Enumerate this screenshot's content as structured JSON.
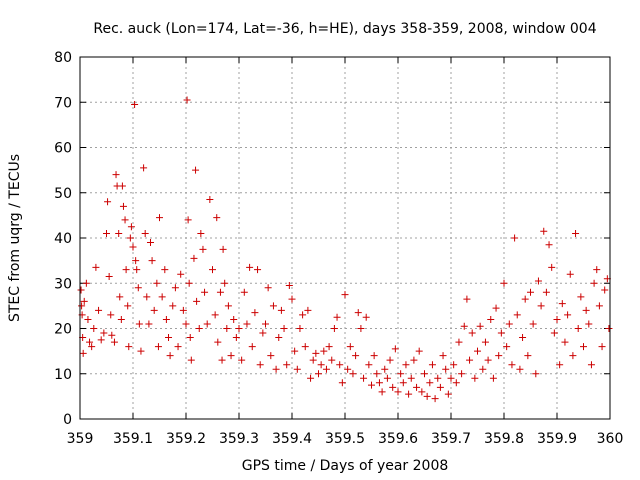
{
  "chart_data": {
    "type": "scatter",
    "title": "Rec. auck (Lon=174, Lat=-36, h=HE), days 358-359, 2008, window 004",
    "xlabel": "GPS time / Days of year 2008",
    "ylabel": "STEC from uqrg / TECUs",
    "xlim": [
      359,
      360
    ],
    "ylim": [
      0,
      80
    ],
    "x_ticks": [
      "359",
      "359.1",
      "359.2",
      "359.3",
      "359.4",
      "359.5",
      "359.6",
      "359.7",
      "359.8",
      "359.9",
      "360"
    ],
    "y_ticks": [
      "0",
      "10",
      "20",
      "30",
      "40",
      "50",
      "60",
      "70",
      "80"
    ],
    "grid": true,
    "marker": "+",
    "color": "#cc0000",
    "series": [
      {
        "points": [
          [
            359.002,
            28.5
          ],
          [
            359.003,
            25
          ],
          [
            359.004,
            23
          ],
          [
            359.005,
            18
          ],
          [
            359.006,
            14.5
          ],
          [
            359.008,
            26
          ],
          [
            359.012,
            30
          ],
          [
            359.015,
            22
          ],
          [
            359.018,
            17
          ],
          [
            359.022,
            16
          ],
          [
            359.026,
            20
          ],
          [
            359.03,
            33.5
          ],
          [
            359.035,
            24
          ],
          [
            359.04,
            17.5
          ],
          [
            359.045,
            19
          ],
          [
            359.05,
            41
          ],
          [
            359.052,
            48
          ],
          [
            359.055,
            31.5
          ],
          [
            359.058,
            23
          ],
          [
            359.06,
            18.5
          ],
          [
            359.065,
            17
          ],
          [
            359.068,
            54
          ],
          [
            359.07,
            51.5
          ],
          [
            359.073,
            41
          ],
          [
            359.075,
            27
          ],
          [
            359.078,
            22
          ],
          [
            359.08,
            51.5
          ],
          [
            359.082,
            47
          ],
          [
            359.085,
            44
          ],
          [
            359.087,
            33
          ],
          [
            359.09,
            25
          ],
          [
            359.092,
            16
          ],
          [
            359.095,
            40
          ],
          [
            359.097,
            42.5
          ],
          [
            359.1,
            38
          ],
          [
            359.103,
            69.5
          ],
          [
            359.105,
            35
          ],
          [
            359.107,
            33
          ],
          [
            359.11,
            29
          ],
          [
            359.112,
            21
          ],
          [
            359.115,
            15
          ],
          [
            359.12,
            55.5
          ],
          [
            359.123,
            41
          ],
          [
            359.126,
            27
          ],
          [
            359.13,
            21
          ],
          [
            359.133,
            39
          ],
          [
            359.136,
            35
          ],
          [
            359.14,
            24
          ],
          [
            359.145,
            30
          ],
          [
            359.148,
            16
          ],
          [
            359.15,
            44.5
          ],
          [
            359.155,
            27
          ],
          [
            359.16,
            33
          ],
          [
            359.163,
            22
          ],
          [
            359.167,
            18
          ],
          [
            359.17,
            14
          ],
          [
            359.175,
            25
          ],
          [
            359.18,
            29
          ],
          [
            359.185,
            16
          ],
          [
            359.19,
            32
          ],
          [
            359.195,
            24
          ],
          [
            359.2,
            21
          ],
          [
            359.202,
            70.5
          ],
          [
            359.204,
            44
          ],
          [
            359.206,
            30
          ],
          [
            359.208,
            18
          ],
          [
            359.21,
            13
          ],
          [
            359.215,
            35.5
          ],
          [
            359.218,
            55
          ],
          [
            359.22,
            26
          ],
          [
            359.225,
            20
          ],
          [
            359.228,
            41
          ],
          [
            359.232,
            37.5
          ],
          [
            359.235,
            28
          ],
          [
            359.24,
            21
          ],
          [
            359.245,
            48.5
          ],
          [
            359.25,
            33
          ],
          [
            359.255,
            23
          ],
          [
            359.258,
            44.5
          ],
          [
            359.26,
            17
          ],
          [
            359.265,
            28
          ],
          [
            359.268,
            13
          ],
          [
            359.27,
            37.5
          ],
          [
            359.273,
            30
          ],
          [
            359.277,
            20
          ],
          [
            359.28,
            25
          ],
          [
            359.285,
            14
          ],
          [
            359.29,
            22
          ],
          [
            359.295,
            18
          ],
          [
            359.3,
            20
          ],
          [
            359.305,
            13
          ],
          [
            359.31,
            28
          ],
          [
            359.315,
            21
          ],
          [
            359.32,
            33.5
          ],
          [
            359.325,
            16
          ],
          [
            359.33,
            23.5
          ],
          [
            359.335,
            33
          ],
          [
            359.34,
            12
          ],
          [
            359.345,
            19
          ],
          [
            359.35,
            21
          ],
          [
            359.355,
            29
          ],
          [
            359.36,
            14
          ],
          [
            359.365,
            25
          ],
          [
            359.37,
            11
          ],
          [
            359.375,
            18
          ],
          [
            359.38,
            24
          ],
          [
            359.385,
            20
          ],
          [
            359.39,
            12
          ],
          [
            359.395,
            29.5
          ],
          [
            359.4,
            26.5
          ],
          [
            359.405,
            15
          ],
          [
            359.41,
            11
          ],
          [
            359.415,
            20
          ],
          [
            359.42,
            23
          ],
          [
            359.425,
            16
          ],
          [
            359.43,
            24
          ],
          [
            359.435,
            9
          ],
          [
            359.44,
            13
          ],
          [
            359.445,
            14.5
          ],
          [
            359.45,
            10
          ],
          [
            359.455,
            12
          ],
          [
            359.46,
            15
          ],
          [
            359.465,
            11
          ],
          [
            359.47,
            16
          ],
          [
            359.475,
            13
          ],
          [
            359.48,
            20
          ],
          [
            359.485,
            22.5
          ],
          [
            359.49,
            12
          ],
          [
            359.495,
            8
          ],
          [
            359.5,
            27.5
          ],
          [
            359.505,
            11
          ],
          [
            359.51,
            16
          ],
          [
            359.515,
            10
          ],
          [
            359.52,
            14
          ],
          [
            359.525,
            23.5
          ],
          [
            359.53,
            20
          ],
          [
            359.535,
            9
          ],
          [
            359.54,
            22.5
          ],
          [
            359.545,
            12
          ],
          [
            359.55,
            7.5
          ],
          [
            359.555,
            14
          ],
          [
            359.56,
            10
          ],
          [
            359.565,
            8
          ],
          [
            359.57,
            6
          ],
          [
            359.575,
            11
          ],
          [
            359.58,
            9
          ],
          [
            359.585,
            13
          ],
          [
            359.59,
            7
          ],
          [
            359.595,
            15.5
          ],
          [
            359.6,
            6
          ],
          [
            359.605,
            10
          ],
          [
            359.61,
            8
          ],
          [
            359.615,
            12
          ],
          [
            359.62,
            5.5
          ],
          [
            359.625,
            9
          ],
          [
            359.63,
            13
          ],
          [
            359.635,
            7
          ],
          [
            359.64,
            15
          ],
          [
            359.645,
            6
          ],
          [
            359.65,
            10
          ],
          [
            359.655,
            5
          ],
          [
            359.66,
            8
          ],
          [
            359.665,
            12
          ],
          [
            359.67,
            4.5
          ],
          [
            359.675,
            9
          ],
          [
            359.68,
            7
          ],
          [
            359.685,
            14
          ],
          [
            359.69,
            11
          ],
          [
            359.695,
            5.5
          ],
          [
            359.7,
            9
          ],
          [
            359.705,
            12
          ],
          [
            359.71,
            8
          ],
          [
            359.715,
            17
          ],
          [
            359.72,
            10
          ],
          [
            359.725,
            20.5
          ],
          [
            359.73,
            26.5
          ],
          [
            359.735,
            13
          ],
          [
            359.74,
            19
          ],
          [
            359.745,
            9
          ],
          [
            359.75,
            15
          ],
          [
            359.755,
            20.5
          ],
          [
            359.76,
            11
          ],
          [
            359.765,
            17
          ],
          [
            359.77,
            13
          ],
          [
            359.775,
            22
          ],
          [
            359.78,
            9
          ],
          [
            359.785,
            24.5
          ],
          [
            359.79,
            14
          ],
          [
            359.795,
            19
          ],
          [
            359.8,
            30
          ],
          [
            359.805,
            16
          ],
          [
            359.81,
            21
          ],
          [
            359.815,
            12
          ],
          [
            359.82,
            40
          ],
          [
            359.825,
            23
          ],
          [
            359.83,
            11
          ],
          [
            359.835,
            18
          ],
          [
            359.84,
            26.5
          ],
          [
            359.845,
            14
          ],
          [
            359.85,
            28
          ],
          [
            359.855,
            21
          ],
          [
            359.86,
            10
          ],
          [
            359.865,
            30.5
          ],
          [
            359.87,
            25
          ],
          [
            359.875,
            41.5
          ],
          [
            359.88,
            28
          ],
          [
            359.885,
            38.5
          ],
          [
            359.89,
            33.5
          ],
          [
            359.895,
            19
          ],
          [
            359.9,
            22
          ],
          [
            359.905,
            12
          ],
          [
            359.91,
            25.5
          ],
          [
            359.915,
            17
          ],
          [
            359.92,
            23
          ],
          [
            359.925,
            32
          ],
          [
            359.93,
            14
          ],
          [
            359.935,
            41
          ],
          [
            359.94,
            20
          ],
          [
            359.945,
            27
          ],
          [
            359.95,
            16
          ],
          [
            359.955,
            24
          ],
          [
            359.96,
            21
          ],
          [
            359.965,
            12
          ],
          [
            359.97,
            30
          ],
          [
            359.975,
            33
          ],
          [
            359.98,
            25
          ],
          [
            359.985,
            16
          ],
          [
            359.99,
            28.5
          ],
          [
            359.995,
            31
          ],
          [
            359.998,
            20
          ]
        ]
      }
    ]
  }
}
